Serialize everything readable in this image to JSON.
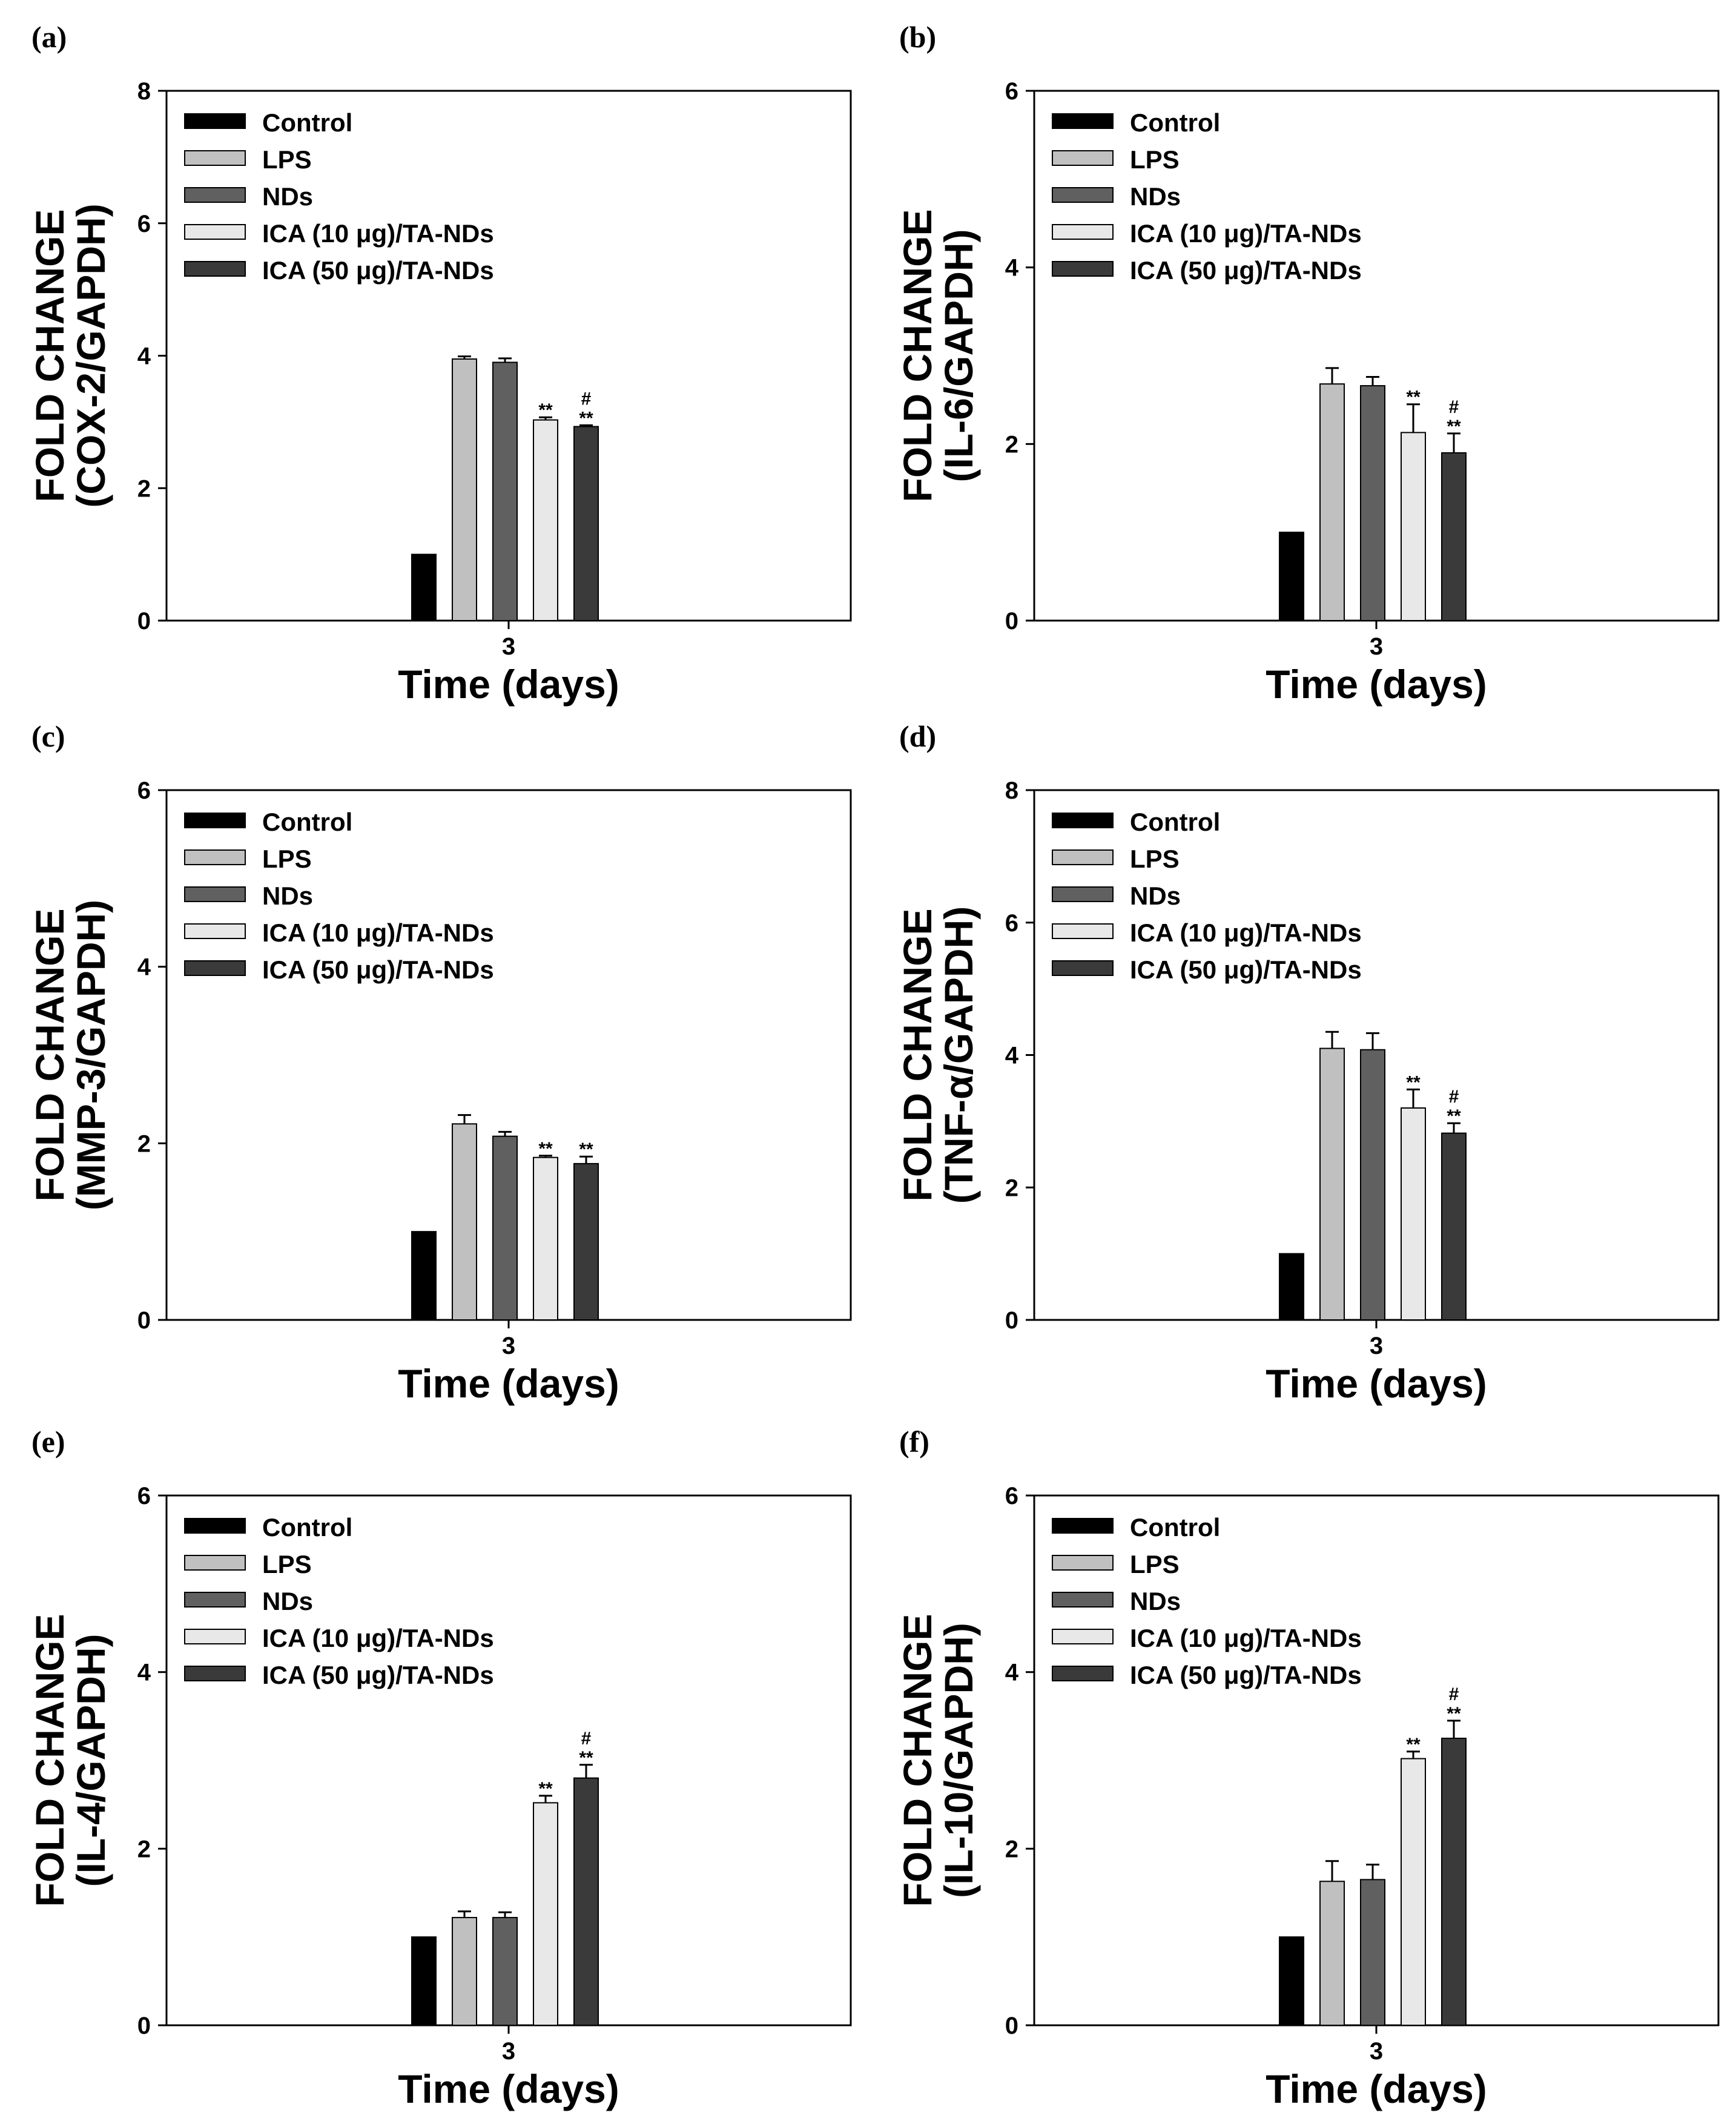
{
  "chart_data": [
    {
      "panel": "(a)",
      "type": "bar",
      "x_tick": "3",
      "xlabel": "Time (days)",
      "ylabel_line1": "FOLD CHANGE",
      "ylabel_line2": "(COX-2/GAPDH)",
      "ylim": [
        0,
        8
      ],
      "yticks": [
        "0",
        "2",
        "4",
        "6",
        "8"
      ],
      "series": [
        {
          "name": "Control",
          "value": 1.0,
          "error": 0,
          "sig": []
        },
        {
          "name": "LPS",
          "value": 3.95,
          "error": 0.04,
          "sig": []
        },
        {
          "name": "NDs",
          "value": 3.9,
          "error": 0.06,
          "sig": []
        },
        {
          "name": "ICA (10 μg)/TA-NDs",
          "value": 3.03,
          "error": 0.04,
          "sig": [
            "**"
          ]
        },
        {
          "name": "ICA (50 μg)/TA-NDs",
          "value": 2.93,
          "error": 0.02,
          "sig": [
            "#",
            "**"
          ]
        }
      ]
    },
    {
      "panel": "(b)",
      "type": "bar",
      "x_tick": "3",
      "xlabel": "Time (days)",
      "ylabel_line1": "FOLD CHANGE",
      "ylabel_line2": "(IL-6/GAPDH)",
      "ylim": [
        0,
        6
      ],
      "yticks": [
        "0",
        "2",
        "4",
        "6"
      ],
      "series": [
        {
          "name": "Control",
          "value": 1.0,
          "error": 0,
          "sig": []
        },
        {
          "name": "LPS",
          "value": 2.68,
          "error": 0.18,
          "sig": []
        },
        {
          "name": "NDs",
          "value": 2.66,
          "error": 0.1,
          "sig": []
        },
        {
          "name": "ICA (10 μg)/TA-NDs",
          "value": 2.13,
          "error": 0.32,
          "sig": [
            "**"
          ]
        },
        {
          "name": "ICA (50 μg)/TA-NDs",
          "value": 1.9,
          "error": 0.22,
          "sig": [
            "#",
            "**"
          ]
        }
      ]
    },
    {
      "panel": "(c)",
      "type": "bar",
      "x_tick": "3",
      "xlabel": "Time (days)",
      "ylabel_line1": "FOLD CHANGE",
      "ylabel_line2": "(MMP-3/GAPDH)",
      "ylim": [
        0,
        6
      ],
      "yticks": [
        "0",
        "2",
        "4",
        "6"
      ],
      "series": [
        {
          "name": "Control",
          "value": 1.0,
          "error": 0,
          "sig": []
        },
        {
          "name": "LPS",
          "value": 2.22,
          "error": 0.1,
          "sig": []
        },
        {
          "name": "NDs",
          "value": 2.08,
          "error": 0.05,
          "sig": []
        },
        {
          "name": "ICA (10 μg)/TA-NDs",
          "value": 1.84,
          "error": 0.02,
          "sig": [
            "**"
          ]
        },
        {
          "name": "ICA (50 μg)/TA-NDs",
          "value": 1.77,
          "error": 0.08,
          "sig": [
            "**"
          ]
        }
      ]
    },
    {
      "panel": "(d)",
      "type": "bar",
      "x_tick": "3",
      "xlabel": "Time (days)",
      "ylabel_line1": "FOLD CHANGE",
      "ylabel_line2": "(TNF-α/GAPDH)",
      "ylim": [
        0,
        8
      ],
      "yticks": [
        "0",
        "2",
        "4",
        "6",
        "8"
      ],
      "series": [
        {
          "name": "Control",
          "value": 1.0,
          "error": 0,
          "sig": []
        },
        {
          "name": "LPS",
          "value": 4.1,
          "error": 0.25,
          "sig": []
        },
        {
          "name": "NDs",
          "value": 4.08,
          "error": 0.25,
          "sig": []
        },
        {
          "name": "ICA (10 μg)/TA-NDs",
          "value": 3.2,
          "error": 0.28,
          "sig": [
            "**"
          ]
        },
        {
          "name": "ICA (50 μg)/TA-NDs",
          "value": 2.82,
          "error": 0.15,
          "sig": [
            "#",
            "**"
          ]
        }
      ]
    },
    {
      "panel": "(e)",
      "type": "bar",
      "x_tick": "3",
      "xlabel": "Time (days)",
      "ylabel_line1": "FOLD CHANGE",
      "ylabel_line2": "(IL-4/GAPDH)",
      "ylim": [
        0,
        6
      ],
      "yticks": [
        "0",
        "2",
        "4",
        "6"
      ],
      "series": [
        {
          "name": "Control",
          "value": 1.0,
          "error": 0,
          "sig": []
        },
        {
          "name": "LPS",
          "value": 1.22,
          "error": 0.07,
          "sig": []
        },
        {
          "name": "NDs",
          "value": 1.22,
          "error": 0.06,
          "sig": []
        },
        {
          "name": "ICA (10 μg)/TA-NDs",
          "value": 2.52,
          "error": 0.08,
          "sig": [
            "**"
          ]
        },
        {
          "name": "ICA (50 μg)/TA-NDs",
          "value": 2.8,
          "error": 0.15,
          "sig": [
            "#",
            "**"
          ]
        }
      ]
    },
    {
      "panel": "(f)",
      "type": "bar",
      "x_tick": "3",
      "xlabel": "Time (days)",
      "ylabel_line1": "FOLD CHANGE",
      "ylabel_line2": "(IL-10/GAPDH)",
      "ylim": [
        0,
        6
      ],
      "yticks": [
        "0",
        "2",
        "4",
        "6"
      ],
      "series": [
        {
          "name": "Control",
          "value": 1.0,
          "error": 0,
          "sig": []
        },
        {
          "name": "LPS",
          "value": 1.63,
          "error": 0.23,
          "sig": []
        },
        {
          "name": "NDs",
          "value": 1.65,
          "error": 0.17,
          "sig": []
        },
        {
          "name": "ICA (10 μg)/TA-NDs",
          "value": 3.02,
          "error": 0.08,
          "sig": [
            "**"
          ]
        },
        {
          "name": "ICA (50 μg)/TA-NDs",
          "value": 3.25,
          "error": 0.2,
          "sig": [
            "#",
            "**"
          ]
        }
      ]
    }
  ],
  "colors": {
    "Control": "#000000",
    "LPS": "#c0c0c0",
    "NDs": "#606060",
    "ICA (10 μg)/TA-NDs": "#e8e8e8",
    "ICA (50 μg)/TA-NDs": "#3a3a3a"
  }
}
